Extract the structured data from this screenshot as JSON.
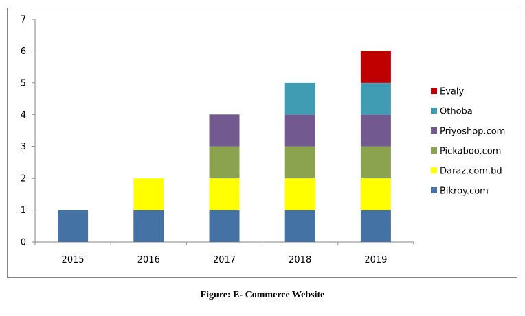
{
  "chart_data": {
    "type": "bar",
    "stacked": true,
    "categories": [
      "2015",
      "2016",
      "2017",
      "2018",
      "2019"
    ],
    "series": [
      {
        "name": "Bikroy.com",
        "color": "#4472a4",
        "values": [
          1,
          1,
          1,
          1,
          1
        ]
      },
      {
        "name": "Daraz.com.bd",
        "color": "#ffff00",
        "values": [
          0,
          1,
          1,
          1,
          1
        ]
      },
      {
        "name": "Pickaboo.com",
        "color": "#8ba24e",
        "values": [
          0,
          0,
          1,
          1,
          1
        ]
      },
      {
        "name": "Priyoshop.com",
        "color": "#725a91",
        "values": [
          0,
          0,
          1,
          1,
          1
        ]
      },
      {
        "name": "Othoba",
        "color": "#3f9cb2",
        "values": [
          0,
          0,
          0,
          1,
          1
        ]
      },
      {
        "name": "Evaly",
        "color": "#c00000",
        "values": [
          0,
          0,
          0,
          0,
          1
        ]
      }
    ],
    "ylim": [
      0,
      7
    ],
    "yticks": [
      "0",
      "1",
      "2",
      "3",
      "4",
      "5",
      "6",
      "7"
    ],
    "grid": false,
    "legend_position": "right",
    "legend_order": "reversed"
  },
  "caption": "Figure: E- Commerce Website"
}
